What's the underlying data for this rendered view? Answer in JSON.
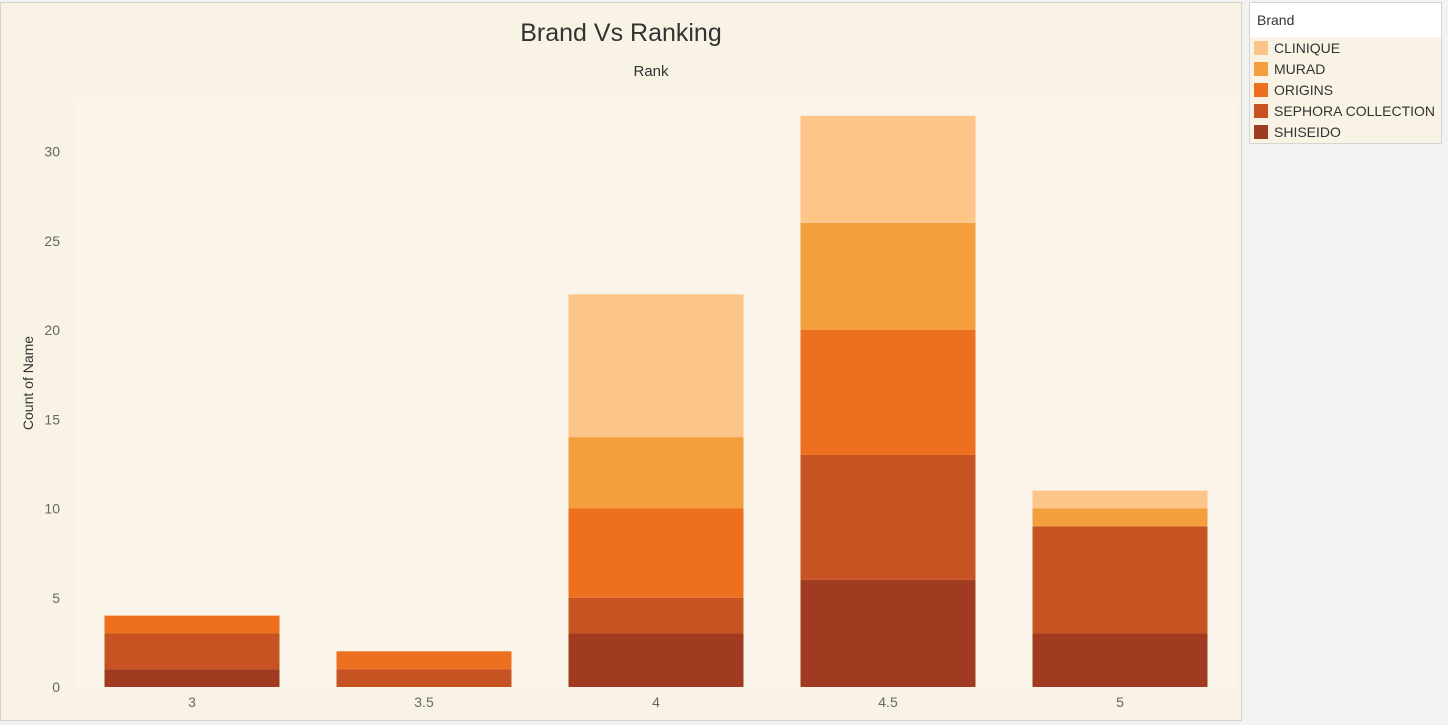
{
  "chart_data": {
    "type": "bar",
    "stacked": true,
    "title": "Brand Vs Ranking",
    "x_header": "Rank",
    "ylabel": "Count of Name",
    "categories": [
      "3",
      "3.5",
      "4",
      "4.5",
      "5"
    ],
    "ylim": [
      0,
      33
    ],
    "yticks": [
      0,
      5,
      10,
      15,
      20,
      25,
      30
    ],
    "grid": false,
    "legend_position": "top-right",
    "legend_title": "Brand",
    "series": [
      {
        "name": "SHISEIDO",
        "color": "#a03a20",
        "values": [
          1,
          0,
          3,
          6,
          3
        ]
      },
      {
        "name": "SEPHORA COLLECTION",
        "color": "#c75222",
        "values": [
          2,
          1,
          2,
          7,
          6
        ]
      },
      {
        "name": "ORIGINS",
        "color": "#ec7020",
        "values": [
          1,
          1,
          5,
          7,
          0
        ]
      },
      {
        "name": "MURAD",
        "color": "#f49f3e",
        "values": [
          0,
          0,
          4,
          6,
          1
        ]
      },
      {
        "name": "CLINIQUE",
        "color": "#fdc587",
        "values": [
          0,
          0,
          8,
          6,
          1
        ]
      }
    ],
    "legend_order": [
      "CLINIQUE",
      "MURAD",
      "ORIGINS",
      "SEPHORA COLLECTION",
      "SHISEIDO"
    ]
  }
}
